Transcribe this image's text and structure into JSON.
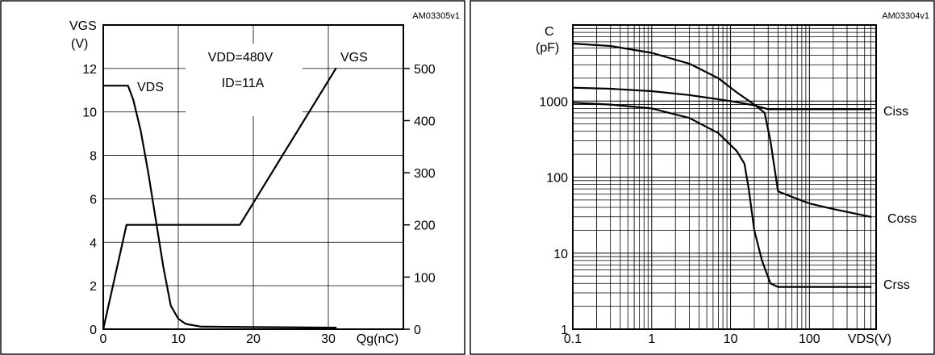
{
  "chart_data": [
    {
      "type": "line",
      "code": "AM03305v1",
      "ylabel_top": "VGS",
      "ylabel_unit": "(V)",
      "xlabel": "Qg(nC)",
      "xlim": [
        0,
        40
      ],
      "ylim": [
        0,
        14
      ],
      "y2lim": [
        0,
        583.3
      ],
      "xticks": [
        "0",
        "10",
        "20",
        "30"
      ],
      "xtick_values": [
        0,
        10,
        20,
        30
      ],
      "yticks": [
        "0",
        "2",
        "4",
        "6",
        "8",
        "10",
        "12"
      ],
      "ytick_values": [
        0,
        2,
        4,
        6,
        8,
        10,
        12
      ],
      "y2ticks": [
        "0",
        "100",
        "200",
        "300",
        "400",
        "500"
      ],
      "y2tick_values": [
        0,
        100,
        200,
        300,
        400,
        500
      ],
      "annotations": {
        "vdd": "VDD=480V",
        "id": "ID=11A"
      },
      "series": [
        {
          "name": "VGS",
          "axis": "left",
          "x": [
            0,
            3.1,
            18.2,
            31
          ],
          "y": [
            0,
            4.8,
            4.8,
            12
          ]
        },
        {
          "name": "VDS",
          "axis": "right",
          "x": [
            0,
            3.3,
            4.0,
            5.0,
            6.0,
            7.0,
            8.0,
            9.0,
            10.0,
            11.0,
            13.0,
            20.0,
            31.0
          ],
          "y": [
            467,
            467,
            440,
            380,
            300,
            210,
            120,
            45,
            20,
            10,
            5,
            4,
            3
          ]
        }
      ]
    },
    {
      "type": "line",
      "code": "AM03304v1",
      "ylabel_top": "C",
      "ylabel_unit": "(pF)",
      "xlabel": "VDS(V)",
      "xscale": "log",
      "yscale": "log",
      "xlim": [
        0.1,
        700
      ],
      "ylim": [
        1,
        10000
      ],
      "xticks": [
        "0.1",
        "1",
        "10",
        "100"
      ],
      "xtick_values": [
        0.1,
        1,
        10,
        100
      ],
      "yticks": [
        "1",
        "10",
        "100",
        "1000"
      ],
      "ytick_values": [
        1,
        10,
        100,
        1000
      ],
      "series": [
        {
          "name": "Ciss",
          "x": [
            0.1,
            0.3,
            1,
            3,
            10,
            20,
            30,
            100,
            600
          ],
          "y": [
            1500,
            1450,
            1350,
            1200,
            1000,
            880,
            780,
            780,
            780
          ]
        },
        {
          "name": "Coss",
          "x": [
            0.1,
            0.3,
            1,
            3,
            7,
            12,
            20,
            27,
            32,
            40,
            60,
            100,
            200,
            600
          ],
          "y": [
            5700,
            5300,
            4300,
            3100,
            2000,
            1300,
            900,
            700,
            300,
            65,
            55,
            45,
            38,
            30
          ]
        },
        {
          "name": "Crss",
          "x": [
            0.1,
            0.3,
            1,
            3,
            7,
            12,
            15,
            17,
            20,
            25,
            32,
            40,
            50,
            100,
            600
          ],
          "y": [
            950,
            900,
            800,
            600,
            380,
            220,
            150,
            70,
            20,
            8,
            4,
            3.6,
            3.6,
            3.6,
            3.6
          ]
        }
      ]
    }
  ]
}
